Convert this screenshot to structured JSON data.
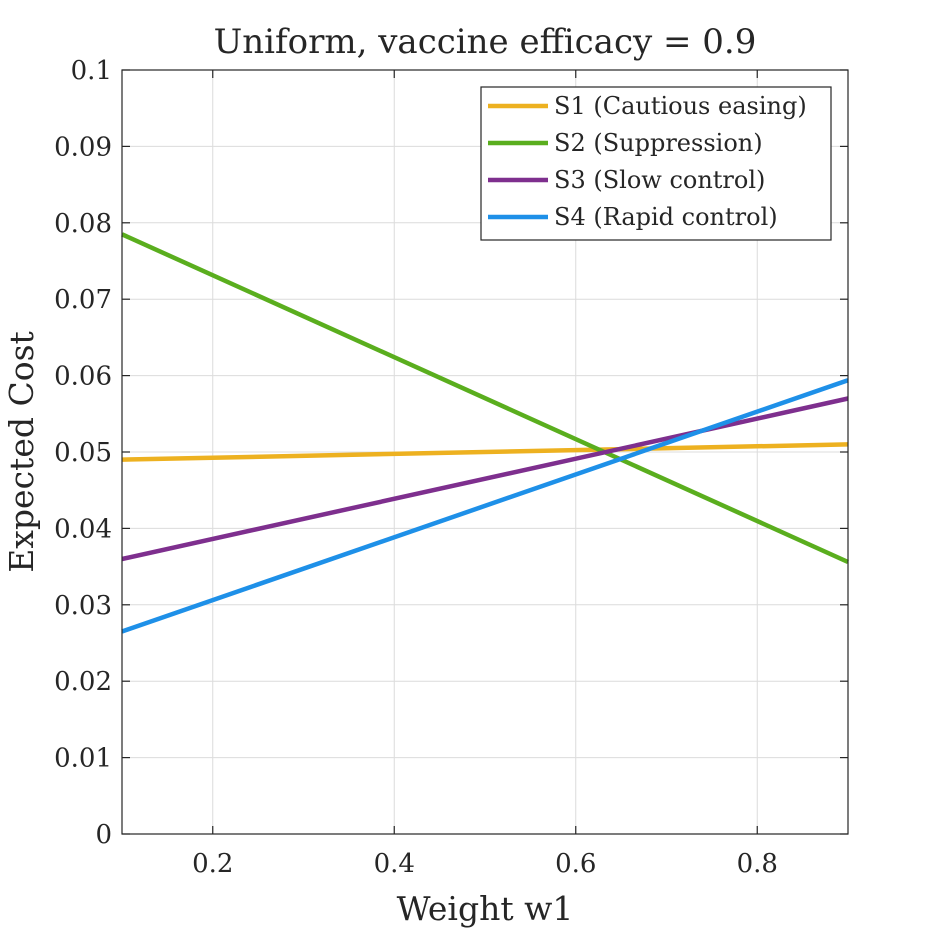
{
  "chart_data": {
    "type": "line",
    "title": "Uniform, vaccine efficacy = 0.9",
    "xlabel": "Weight w1",
    "ylabel": "Expected Cost",
    "xlim": [
      0.1,
      0.9
    ],
    "ylim": [
      0,
      0.1
    ],
    "xticks": [
      0.2,
      0.4,
      0.6,
      0.8
    ],
    "xtick_labels": [
      "0.2",
      "0.4",
      "0.6",
      "0.8"
    ],
    "yticks": [
      0,
      0.01,
      0.02,
      0.03,
      0.04,
      0.05,
      0.06,
      0.07,
      0.08,
      0.09,
      0.1
    ],
    "ytick_labels": [
      "0",
      "0.01",
      "0.02",
      "0.03",
      "0.04",
      "0.05",
      "0.06",
      "0.07",
      "0.08",
      "0.09",
      "0.1"
    ],
    "grid": true,
    "legend_position": "top-right",
    "series": [
      {
        "name": "S1 (Cautious easing)",
        "color": "#EDB120",
        "x": [
          0.1,
          0.9
        ],
        "y": [
          0.049,
          0.051
        ]
      },
      {
        "name": "S2 (Suppression)",
        "color": "#5AAE1E",
        "x": [
          0.1,
          0.9
        ],
        "y": [
          0.0785,
          0.0356
        ]
      },
      {
        "name": "S3 (Slow control)",
        "color": "#7E2F8E",
        "x": [
          0.1,
          0.9
        ],
        "y": [
          0.036,
          0.057
        ]
      },
      {
        "name": "S4 (Rapid control)",
        "color": "#1E90E8",
        "x": [
          0.1,
          0.9
        ],
        "y": [
          0.0265,
          0.0594
        ]
      }
    ]
  }
}
